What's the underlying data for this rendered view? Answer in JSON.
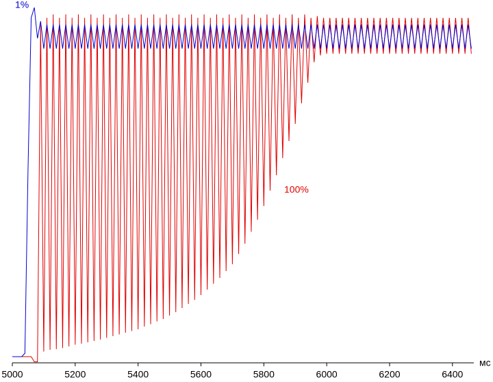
{
  "chart_data": {
    "type": "line",
    "x_label": "мс",
    "x": [
      5000,
      5010,
      5020,
      5030,
      5040,
      5050,
      5060,
      5070,
      5080,
      5090,
      5100,
      5110,
      5120,
      5130,
      5140,
      5150,
      5160,
      5170,
      5180,
      5190,
      5200,
      5210,
      5220,
      5230,
      5240,
      5250,
      5260,
      5270,
      5280,
      5290,
      5300,
      5310,
      5320,
      5330,
      5340,
      5350,
      5360,
      5370,
      5380,
      5390,
      5400,
      5410,
      5420,
      5430,
      5440,
      5450,
      5460,
      5470,
      5480,
      5490,
      5500,
      5510,
      5520,
      5530,
      5540,
      5550,
      5560,
      5570,
      5580,
      5590,
      5600,
      5610,
      5620,
      5630,
      5640,
      5650,
      5660,
      5670,
      5680,
      5690,
      5700,
      5710,
      5720,
      5730,
      5740,
      5750,
      5760,
      5770,
      5780,
      5790,
      5800,
      5810,
      5820,
      5830,
      5840,
      5850,
      5860,
      5870,
      5880,
      5890,
      5900,
      5910,
      5920,
      5930,
      5940,
      5950,
      5960,
      5970,
      5980,
      5990,
      6000,
      6010,
      6020,
      6030,
      6040,
      6050,
      6060,
      6070,
      6080,
      6090,
      6100,
      6110,
      6120,
      6130,
      6140,
      6150,
      6160,
      6170,
      6180,
      6190,
      6200,
      6210,
      6220,
      6230,
      6240,
      6250,
      6260,
      6270,
      6280,
      6290,
      6300,
      6310,
      6320,
      6330,
      6340,
      6350,
      6360,
      6370,
      6380,
      6390,
      6400,
      6410,
      6420,
      6430,
      6440,
      6450,
      6460
    ],
    "series": [
      {
        "name": "100%",
        "color": "#e00000",
        "values": [
          0,
          0,
          0,
          0,
          0,
          0,
          0,
          -1.5,
          -1.5,
          97,
          1.5,
          99,
          2,
          100,
          2.2,
          99,
          2.5,
          100,
          3,
          99,
          3.5,
          100,
          3.8,
          99,
          4.2,
          100,
          4.6,
          99,
          5,
          100,
          5.5,
          99,
          6,
          100,
          6.5,
          99,
          7,
          100,
          7.5,
          99,
          8,
          100,
          8.8,
          99,
          9.5,
          100,
          10.3,
          99,
          11,
          100,
          12,
          99,
          13,
          100,
          14.2,
          99,
          15.4,
          100,
          16.6,
          99,
          18,
          100,
          19.6,
          99,
          21.3,
          100,
          23,
          99,
          25,
          100,
          27,
          99,
          30,
          100,
          33,
          99,
          36.5,
          100,
          40,
          99,
          44,
          100,
          48.5,
          99,
          53,
          100,
          58,
          99,
          63,
          100,
          68,
          99,
          74,
          100,
          80,
          99,
          86,
          99.5,
          88,
          99,
          88.5,
          99,
          88.5,
          99,
          88.5,
          99,
          88.5,
          99,
          88.5,
          99,
          88.5,
          99,
          88.5,
          99,
          88.5,
          99,
          88.5,
          99,
          88.5,
          99,
          88.5,
          99,
          88.5,
          99,
          88.5,
          99,
          88.5,
          99,
          88.5,
          99,
          88.5,
          99,
          88.5,
          99,
          88.5,
          99,
          88.5,
          99,
          88.5,
          99,
          88.5,
          99,
          88.5,
          99,
          88.5,
          99,
          88.5
        ]
      },
      {
        "name": "1%",
        "color": "#0000d0",
        "values": [
          0,
          0,
          0,
          0,
          1,
          55,
          99,
          102,
          93,
          98,
          90,
          97,
          90,
          97,
          90,
          97,
          90,
          97,
          90,
          97,
          90,
          97,
          90,
          97,
          90,
          97,
          90,
          97,
          90,
          97,
          90,
          97,
          90,
          97,
          90,
          97,
          90,
          97,
          90,
          97,
          90,
          97,
          90,
          97,
          90,
          97,
          90,
          97,
          90,
          97,
          90,
          97,
          90,
          97,
          90,
          97,
          90,
          97,
          90,
          97,
          90,
          97,
          90,
          97,
          90,
          97,
          90,
          97,
          90,
          97,
          90,
          97,
          90,
          97,
          90,
          97,
          90,
          97,
          90,
          97,
          90,
          97,
          90,
          97,
          90,
          97,
          90,
          97,
          90,
          97,
          90,
          97,
          90,
          97,
          90,
          97,
          90,
          97,
          90,
          97,
          90,
          97,
          90,
          97,
          90,
          97,
          90,
          97,
          90,
          97,
          90,
          97,
          90,
          97,
          90,
          97,
          90,
          97,
          90,
          97,
          90,
          97,
          90,
          97,
          90,
          97,
          90,
          97,
          90,
          97,
          90,
          97,
          90,
          97,
          90,
          97,
          90,
          97,
          90,
          97,
          90,
          97,
          90,
          97,
          90,
          97,
          90
        ]
      }
    ],
    "xlim": [
      5000,
      6468
    ],
    "xticks": [
      5000,
      5200,
      5400,
      5600,
      5800,
      6000,
      6200,
      6400
    ],
    "ylim": [
      -1.8,
      102.2
    ],
    "grid": false
  }
}
